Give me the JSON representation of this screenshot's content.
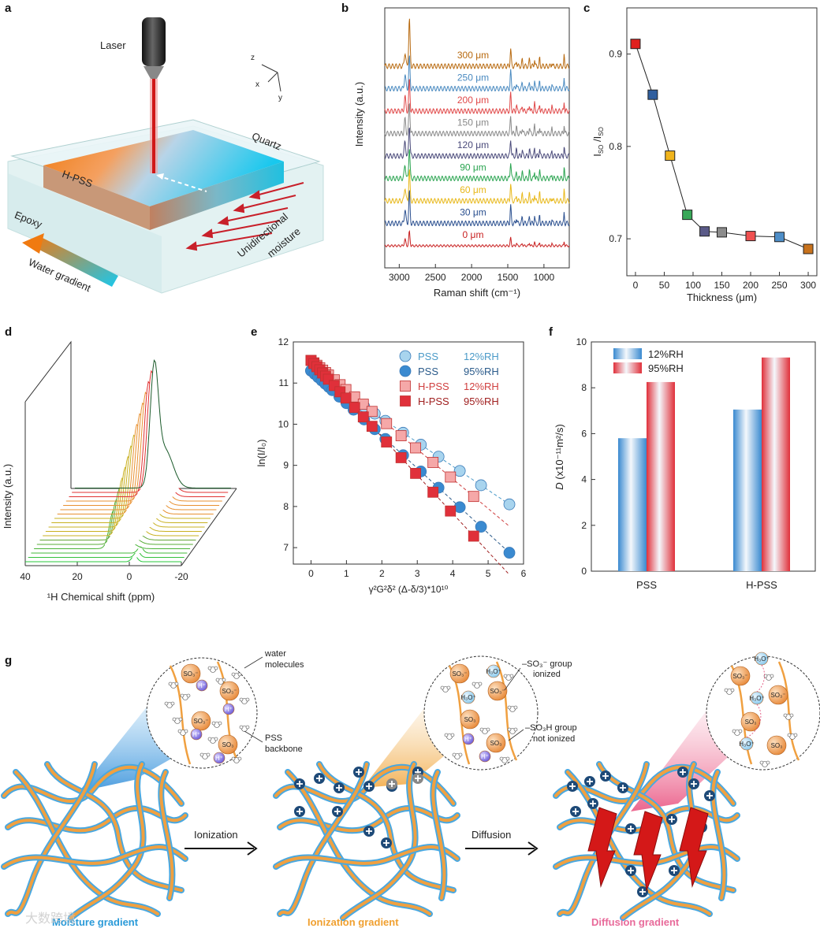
{
  "panel_labels": {
    "a": "a",
    "b": "b",
    "c": "c",
    "d": "d",
    "e": "e",
    "f": "f",
    "g": "g"
  },
  "panel_a": {
    "laser": "Laser",
    "quartz": "Quartz",
    "hpss": "H-PSS",
    "epoxy": "Epoxy",
    "unidirectional": "Unidirectional",
    "moisture": "moisture",
    "water_gradient": "Water gradient",
    "axis_z": "z",
    "axis_x": "x",
    "axis_y": "y",
    "colors": {
      "orange": "#f08a1e",
      "cyan": "#22c8e8",
      "laser": "#d01818",
      "arrow": "#c8202a"
    }
  },
  "panel_b": {
    "chart_data": {
      "type": "line",
      "xlabel": "Raman shift (cm⁻¹)",
      "ylabel": "Intensity (a.u.)",
      "x_ticks": [
        3000,
        2500,
        2000,
        1500,
        1000
      ],
      "xlim": [
        3200,
        650
      ],
      "series": [
        {
          "name": "0 μm",
          "color": "#c82020"
        },
        {
          "name": "30 μm",
          "color": "#2a4f8f"
        },
        {
          "name": "60 μm",
          "color": "#e8b81a"
        },
        {
          "name": "90 μm",
          "color": "#2aa450"
        },
        {
          "name": "120 μm",
          "color": "#4a4a7a"
        },
        {
          "name": "150 μm",
          "color": "#8a8a8a"
        },
        {
          "name": "200 μm",
          "color": "#e04848"
        },
        {
          "name": "250 μm",
          "color": "#4a8ac0"
        },
        {
          "name": "300 μm",
          "color": "#b86a10"
        }
      ]
    }
  },
  "panel_c": {
    "chart_data": {
      "type": "scatter",
      "xlabel": "Thickness (μm)",
      "ylabel": "I_SO3⁻ / I_SO3",
      "ylabel_main": "I",
      "ylabel_sub1": "SO",
      "ylabel_sub2": "SO",
      "x": [
        0,
        30,
        60,
        90,
        120,
        150,
        200,
        250,
        300
      ],
      "y": [
        0.911,
        0.856,
        0.79,
        0.726,
        0.708,
        0.707,
        0.703,
        0.702,
        0.689
      ],
      "colors": [
        "#e0201e",
        "#2f5e9e",
        "#f0b41c",
        "#38a858",
        "#5a5a88",
        "#8c8c8c",
        "#f05050",
        "#4e8ec8",
        "#c8721c"
      ],
      "xlim": [
        -15,
        315
      ],
      "ylim": [
        0.66,
        0.95
      ],
      "x_ticks": [
        0,
        50,
        100,
        150,
        200,
        250,
        300
      ],
      "y_ticks": [
        0.7,
        0.8,
        0.9
      ]
    }
  },
  "panel_d": {
    "chart_data": {
      "type": "line",
      "xlabel": "¹H Chemical shift (ppm)",
      "ylabel": "Intensity (a.u.)",
      "x_ticks": [
        40,
        20,
        0,
        -20
      ],
      "xlim": [
        40,
        -20
      ],
      "traces": 18
    }
  },
  "panel_e": {
    "chart_data": {
      "type": "scatter",
      "xlabel": "γ²G²δ² (Δ-δ/3)*10¹⁰",
      "ylabel": "ln(I/I₀)",
      "xlim": [
        -0.5,
        6.0
      ],
      "ylim": [
        6.6,
        12
      ],
      "x_ticks": [
        0,
        1,
        2,
        3,
        4,
        5,
        6
      ],
      "y_ticks": [
        7,
        8,
        9,
        10,
        11,
        12
      ],
      "series": [
        {
          "name": "PSS",
          "cond": "12%RH",
          "marker": "circle",
          "color": "#a8d4ee",
          "label_color": "#4a9ac8",
          "intercept": 11.3,
          "slope": -0.58
        },
        {
          "name": "PSS",
          "cond": "95%RH",
          "marker": "circle",
          "color": "#3a8ad0",
          "label_color": "#2a5a8a",
          "intercept": 11.3,
          "slope": -0.79
        },
        {
          "name": "H-PSS",
          "cond": "12%RH",
          "marker": "square",
          "color": "#f5a8a8",
          "label_color": "#d04040",
          "intercept": 11.55,
          "slope": -0.72
        },
        {
          "name": "H-PSS",
          "cond": "95%RH",
          "marker": "square",
          "color": "#e0303a",
          "label_color": "#a02020",
          "intercept": 11.55,
          "slope": -0.93
        }
      ],
      "x_points": [
        0,
        0.1,
        0.2,
        0.3,
        0.4,
        0.5,
        0.6,
        0.8,
        1.0,
        1.2,
        1.5,
        1.8,
        2.1,
        2.6,
        3.1,
        3.6,
        4.2,
        4.8,
        5.6
      ]
    }
  },
  "panel_f": {
    "chart_data": {
      "type": "bar",
      "ylabel": "D (x10⁻¹¹m²/s)",
      "ylabel_italic": "D",
      "ylabel_rest": " (x10⁻¹¹m²/s)",
      "categories": [
        "PSS",
        "H-PSS"
      ],
      "series": [
        {
          "name": "12%RH",
          "values": [
            5.8,
            7.05
          ],
          "color": "#3a8ad0"
        },
        {
          "name": "95%RH",
          "values": [
            8.25,
            9.32
          ],
          "color": "#e0303a"
        }
      ],
      "ylim": [
        0,
        10
      ],
      "y_ticks": [
        0,
        2,
        4,
        6,
        8,
        10
      ]
    }
  },
  "panel_g": {
    "ionization": "Ionization",
    "diffusion": "Diffusion",
    "moisture_gradient": "Moisture gradient",
    "ionization_gradient": "Ionization gradient",
    "diffusion_gradient": "Diffusion gradient",
    "water_molecules_1": "water",
    "water_molecules_2": "molecules",
    "pss_backbone_1": "PSS",
    "pss_backbone_2": "backbone",
    "so3_ionized_1": "–SO₃⁻ group",
    "so3_ionized_2": "ionized",
    "so3h_not_1": "–SO₃H group",
    "so3h_not_2": "not ionized",
    "ion_so3m": "SO₃⁻",
    "ion_so3": "SO₃",
    "ion_hp": "H⁺",
    "ion_h3o": "H₃O⁺",
    "watermark": "大数跨境",
    "colors": {
      "moisture": "#2a9ad8",
      "ionization": "#f0a030",
      "diffusion": "#e86a9a",
      "backbone": "#f0a040",
      "outline": "#4aa8e0"
    }
  }
}
